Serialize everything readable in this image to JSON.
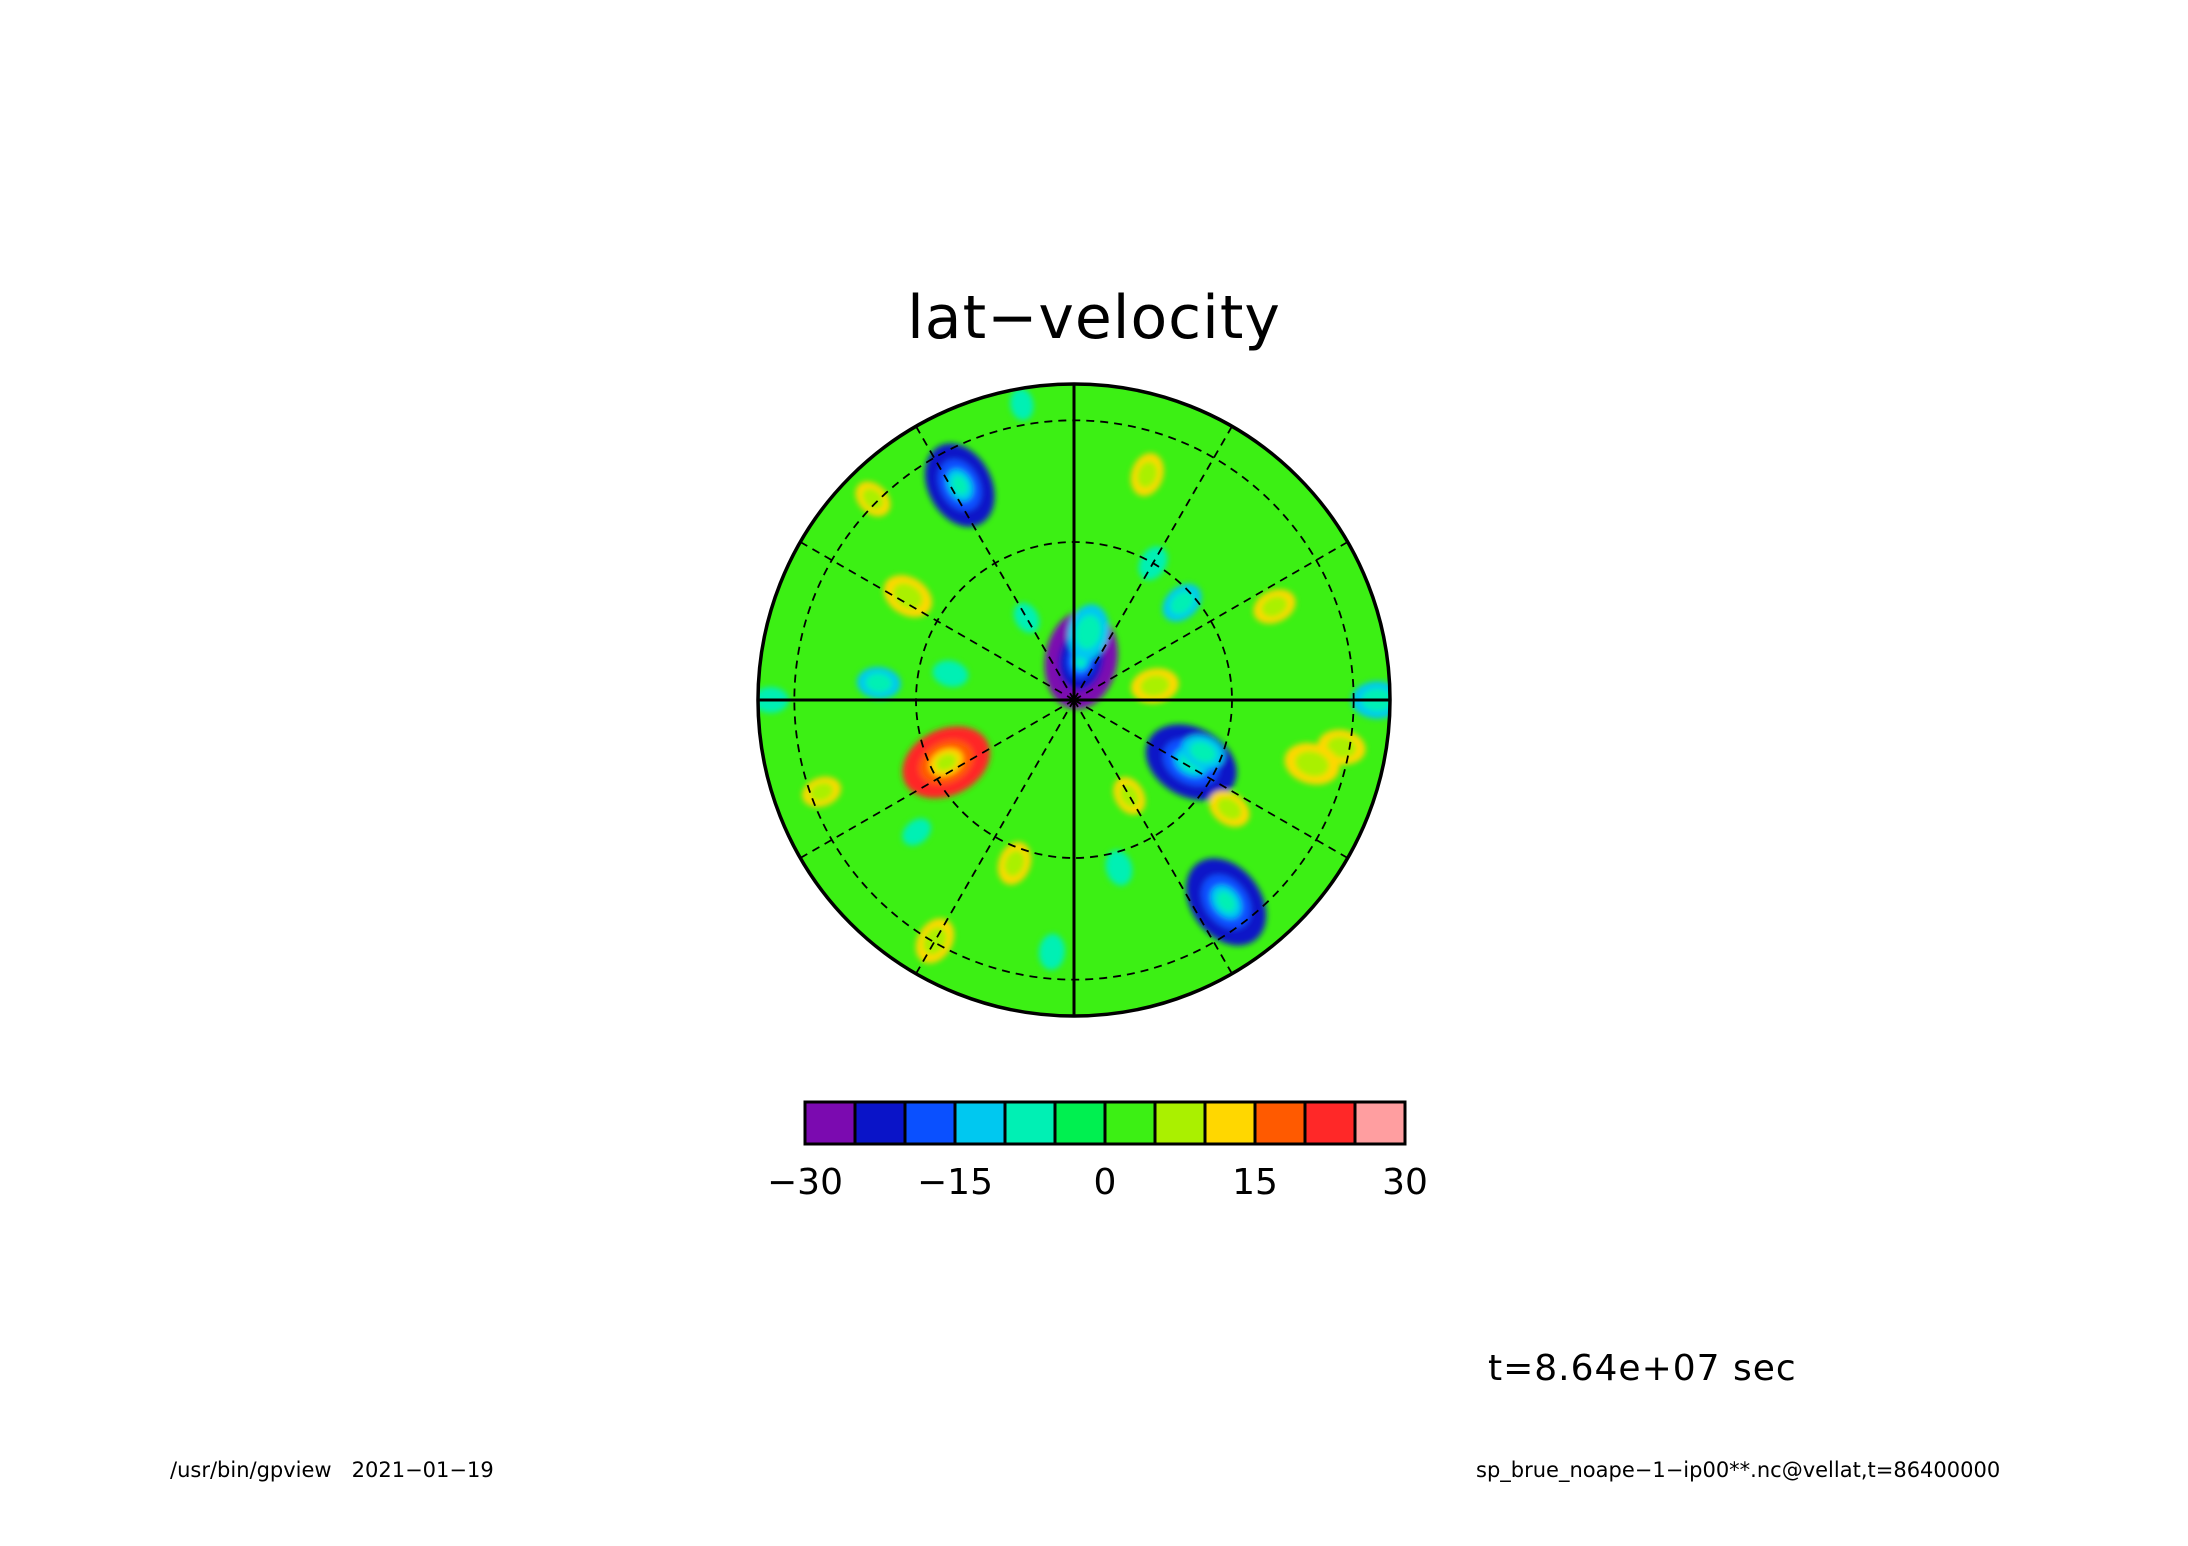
{
  "title": "lat−velocity",
  "time_label": "t=8.64e+07 sec",
  "footer": {
    "program": "/usr/bin/gpview",
    "date": "2021−01−19",
    "source": "sp_brue_noape−1−ip00**.nc@vellat,t=86400000"
  },
  "chart_data": {
    "type": "heatmap",
    "projection": "polar stereographic",
    "variable": "vellat",
    "colorbar": {
      "min": -30,
      "max": 30,
      "step": 5,
      "tick_values": [
        -30,
        -15,
        0,
        15,
        30
      ],
      "tick_labels": [
        "−30",
        "−15",
        "0",
        "15",
        "30"
      ],
      "colors": [
        "#7b0ab0",
        "#0a14c8",
        "#0a50ff",
        "#00c8f0",
        "#00f0b4",
        "#00f050",
        "#3cf014",
        "#aaf000",
        "#ffd700",
        "#ff5a00",
        "#ff2828",
        "#ff9ea0"
      ]
    },
    "field_background": "#3cf014",
    "anomalies": [
      {
        "r": 0.77,
        "theta_deg": 118,
        "value": -22
      },
      {
        "r": 0.13,
        "theta_deg": 80,
        "value": -27
      },
      {
        "r": 0.22,
        "theta_deg": 78,
        "value": -14
      },
      {
        "r": 0.42,
        "theta_deg": -28,
        "value": -24
      },
      {
        "r": 0.8,
        "theta_deg": -53,
        "value": -24
      },
      {
        "r": 0.44,
        "theta_deg": -22,
        "value": -11
      },
      {
        "r": 0.45,
        "theta_deg": -154,
        "value": 23
      },
      {
        "r": 0.46,
        "theta_deg": 42,
        "value": -11
      },
      {
        "r": 0.4,
        "theta_deg": 168,
        "value": -9
      },
      {
        "r": 0.62,
        "theta_deg": 175,
        "value": -11
      },
      {
        "r": 0.5,
        "theta_deg": 60,
        "value": -9
      },
      {
        "r": 0.26,
        "theta_deg": 10,
        "value": 12
      },
      {
        "r": 0.62,
        "theta_deg": 148,
        "value": 13
      },
      {
        "r": 0.96,
        "theta_deg": 180,
        "value": -9
      },
      {
        "r": 0.96,
        "theta_deg": 0,
        "value": -13
      },
      {
        "r": 0.86,
        "theta_deg": -10,
        "value": 12
      },
      {
        "r": 0.78,
        "theta_deg": -15,
        "value": 14
      },
      {
        "r": 0.7,
        "theta_deg": 25,
        "value": 11
      },
      {
        "r": 0.75,
        "theta_deg": 72,
        "value": 11
      },
      {
        "r": 0.55,
        "theta_deg": -110,
        "value": 11
      },
      {
        "r": 0.88,
        "theta_deg": -120,
        "value": 12
      },
      {
        "r": 0.55,
        "theta_deg": -75,
        "value": -9
      },
      {
        "r": 0.8,
        "theta_deg": -95,
        "value": -9
      },
      {
        "r": 0.35,
        "theta_deg": -60,
        "value": 10
      },
      {
        "r": 0.95,
        "theta_deg": 100,
        "value": -8
      },
      {
        "r": 0.9,
        "theta_deg": 135,
        "value": 10
      },
      {
        "r": 0.3,
        "theta_deg": 120,
        "value": -8
      },
      {
        "r": 0.85,
        "theta_deg": -160,
        "value": 10
      },
      {
        "r": 0.65,
        "theta_deg": -140,
        "value": -8
      },
      {
        "r": 0.6,
        "theta_deg": -35,
        "value": 11
      }
    ]
  }
}
